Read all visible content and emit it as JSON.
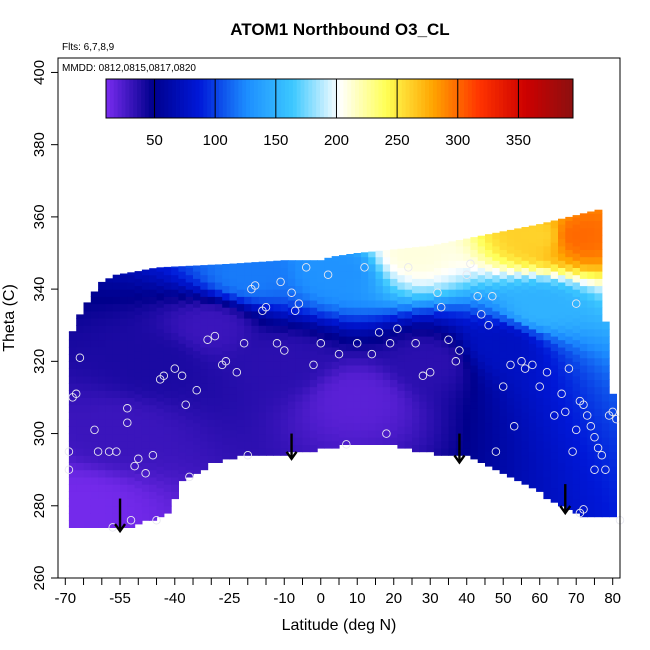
{
  "chart_data": {
    "type": "heatmap",
    "title": "ATOM1 Northbound O3_CL",
    "annotations": [
      "Flts: 6,7,8,9",
      "MMDD: 0812,0815,0817,0820"
    ],
    "xlabel": "Latitude (deg N)",
    "ylabel": "Theta (C)",
    "xlim": [
      -72,
      82
    ],
    "ylim": [
      260,
      404
    ],
    "xticks": [
      -70,
      -55,
      -40,
      -25,
      -10,
      0,
      10,
      20,
      30,
      40,
      50,
      60,
      70,
      80
    ],
    "xtick_labels": [
      "-70",
      "-55",
      "-40",
      "-25",
      "-10",
      "0",
      "10",
      "20",
      "30",
      "40",
      "50",
      "60",
      "70",
      "80"
    ],
    "yticks": [
      260,
      280,
      300,
      320,
      340,
      360,
      380,
      400
    ],
    "ytick_labels": [
      "260",
      "280",
      "300",
      "320",
      "340",
      "360",
      "380",
      "400"
    ],
    "colorbar": {
      "range": [
        10,
        395
      ],
      "ticks": [
        50,
        100,
        150,
        200,
        250,
        300,
        350
      ],
      "tick_labels": [
        "50",
        "100",
        "150",
        "200",
        "250",
        "300",
        "350"
      ],
      "colors": [
        "#7a2cf0",
        "#00008c",
        "#0018d8",
        "#1c8cff",
        "#3cc8ff",
        "#ffffff",
        "#ffff55",
        "#ffa500",
        "#ff3300",
        "#cc0000",
        "#8c1010"
      ]
    },
    "data_domain": {
      "top_envelope": [
        [
          -69,
          326
        ],
        [
          -66,
          333
        ],
        [
          -63,
          338
        ],
        [
          -60,
          342
        ],
        [
          -56,
          344
        ],
        [
          -50,
          345
        ],
        [
          -45,
          346
        ],
        [
          -25,
          347
        ],
        [
          -10,
          348
        ],
        [
          0,
          348
        ],
        [
          3,
          349
        ],
        [
          10,
          350
        ],
        [
          20,
          351
        ],
        [
          30,
          352
        ],
        [
          40,
          354
        ],
        [
          50,
          356
        ],
        [
          60,
          358
        ],
        [
          76,
          362
        ]
      ],
      "bottom_envelope": [
        [
          -69,
          274
        ],
        [
          -62,
          274
        ],
        [
          -55,
          274
        ],
        [
          -48,
          276
        ],
        [
          -42,
          278
        ],
        [
          -38,
          287
        ],
        [
          -30,
          292
        ],
        [
          -20,
          294.5
        ],
        [
          -8,
          295
        ],
        [
          0,
          296
        ],
        [
          11,
          298
        ],
        [
          20,
          297
        ],
        [
          30,
          295
        ],
        [
          40,
          294
        ],
        [
          50,
          289
        ],
        [
          60,
          284
        ],
        [
          68,
          279
        ],
        [
          73,
          277
        ],
        [
          81,
          277
        ]
      ],
      "right_edge": [
        [
          76,
          362
        ],
        [
          77,
          345
        ],
        [
          78,
          330
        ],
        [
          79,
          315
        ],
        [
          81,
          305
        ],
        [
          81,
          277
        ]
      ]
    },
    "field_samples": [
      {
        "lat": -65,
        "theta": 280,
        "o3": 12
      },
      {
        "lat": -55,
        "theta": 300,
        "o3": 30
      },
      {
        "lat": -45,
        "theta": 320,
        "o3": 40
      },
      {
        "lat": -30,
        "theta": 330,
        "o3": 30
      },
      {
        "lat": -10,
        "theta": 320,
        "o3": 35
      },
      {
        "lat": 10,
        "theta": 310,
        "o3": 20
      },
      {
        "lat": 30,
        "theta": 320,
        "o3": 35
      },
      {
        "lat": 50,
        "theta": 325,
        "o3": 75
      },
      {
        "lat": 60,
        "theta": 335,
        "o3": 150
      },
      {
        "lat": 70,
        "theta": 355,
        "o3": 300
      },
      {
        "lat": 60,
        "theta": 355,
        "o3": 260
      },
      {
        "lat": 5,
        "theta": 345,
        "o3": 130
      },
      {
        "lat": -20,
        "theta": 344,
        "o3": 120
      },
      {
        "lat": 25,
        "theta": 350,
        "o3": 210
      }
    ],
    "sample_points": [
      [
        -69,
        295
      ],
      [
        -69,
        290
      ],
      [
        -68,
        310
      ],
      [
        -67,
        311
      ],
      [
        -66,
        321
      ],
      [
        -62,
        301
      ],
      [
        -61,
        295
      ],
      [
        -58,
        295
      ],
      [
        -56,
        295
      ],
      [
        -53,
        307
      ],
      [
        -53,
        303
      ],
      [
        -51,
        291
      ],
      [
        -50,
        293
      ],
      [
        -48,
        289
      ],
      [
        -46,
        294
      ],
      [
        -45,
        276
      ],
      [
        -52,
        276
      ],
      [
        -57,
        274
      ],
      [
        -44,
        315
      ],
      [
        -43,
        316
      ],
      [
        -40,
        318
      ],
      [
        -38,
        316
      ],
      [
        -37,
        308
      ],
      [
        -36,
        288
      ],
      [
        -34,
        312
      ],
      [
        -31,
        326
      ],
      [
        -29,
        327
      ],
      [
        -27,
        319
      ],
      [
        -26,
        320
      ],
      [
        -23,
        317
      ],
      [
        -21,
        325
      ],
      [
        -20,
        294
      ],
      [
        -19,
        340
      ],
      [
        -18,
        341
      ],
      [
        -16,
        334
      ],
      [
        -15,
        335
      ],
      [
        -12,
        325
      ],
      [
        -11,
        342
      ],
      [
        -10,
        323
      ],
      [
        -8,
        339
      ],
      [
        -7,
        334
      ],
      [
        -6,
        336
      ],
      [
        -4,
        346
      ],
      [
        -2,
        319
      ],
      [
        0,
        325
      ],
      [
        2,
        344
      ],
      [
        5,
        322
      ],
      [
        7,
        297
      ],
      [
        10,
        325
      ],
      [
        12,
        346
      ],
      [
        14,
        322
      ],
      [
        16,
        328
      ],
      [
        18,
        300
      ],
      [
        19,
        325
      ],
      [
        21,
        329
      ],
      [
        24,
        346
      ],
      [
        26,
        325
      ],
      [
        28,
        316
      ],
      [
        30,
        317
      ],
      [
        32,
        339
      ],
      [
        33,
        335
      ],
      [
        35,
        326
      ],
      [
        37,
        320
      ],
      [
        38,
        323
      ],
      [
        40,
        344
      ],
      [
        41,
        347
      ],
      [
        43,
        338
      ],
      [
        44,
        333
      ],
      [
        46,
        330
      ],
      [
        47,
        338
      ],
      [
        48,
        295
      ],
      [
        50,
        313
      ],
      [
        52,
        319
      ],
      [
        53,
        302
      ],
      [
        55,
        320
      ],
      [
        56,
        318
      ],
      [
        58,
        319
      ],
      [
        60,
        313
      ],
      [
        62,
        317
      ],
      [
        64,
        305
      ],
      [
        66,
        311
      ],
      [
        67,
        306
      ],
      [
        68,
        318
      ],
      [
        69,
        295
      ],
      [
        70,
        336
      ],
      [
        71,
        309
      ],
      [
        72,
        308
      ],
      [
        73,
        305
      ],
      [
        74,
        302
      ],
      [
        75,
        299
      ],
      [
        76,
        296
      ],
      [
        77,
        294
      ],
      [
        78,
        290
      ],
      [
        79,
        305
      ],
      [
        80,
        306
      ],
      [
        81,
        304
      ],
      [
        82,
        276
      ],
      [
        71,
        278
      ],
      [
        72,
        279
      ],
      [
        75,
        290
      ],
      [
        70,
        301
      ]
    ],
    "arrows": [
      {
        "lat": -55,
        "theta_from": 282,
        "theta_to": 273
      },
      {
        "lat": -8,
        "theta_from": 300,
        "theta_to": 293
      },
      {
        "lat": 38,
        "theta_from": 300,
        "theta_to": 292
      },
      {
        "lat": 67,
        "theta_from": 286,
        "theta_to": 278
      }
    ]
  }
}
